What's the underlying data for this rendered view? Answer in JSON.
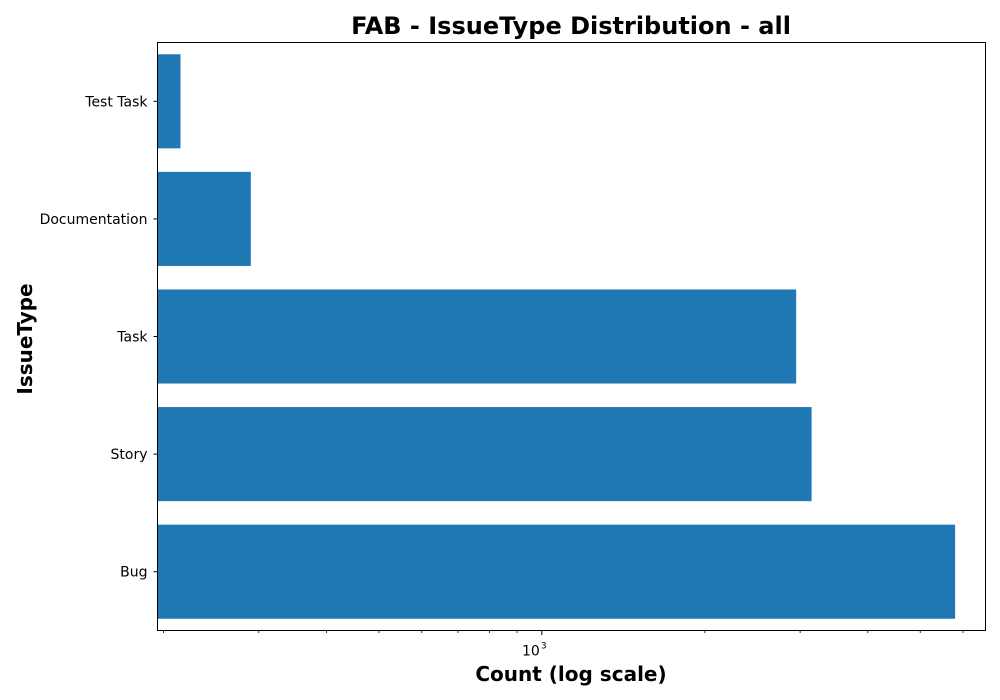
{
  "chart_data": {
    "type": "bar",
    "orientation": "horizontal",
    "title": "FAB - IssueType Distribution - all",
    "xlabel": "Count (log scale)",
    "ylabel": "IssueType",
    "x_scale": "log",
    "xlim": [
      195,
      6600
    ],
    "categories": [
      "Bug",
      "Story",
      "Task",
      "Documentation",
      "Test Task"
    ],
    "values": [
      5800,
      3150,
      2950,
      290,
      215
    ],
    "x_major_ticks": [
      {
        "value": 1000,
        "base": "10",
        "exponent": "3"
      }
    ],
    "x_minor_ticks": [
      200,
      300,
      400,
      500,
      600,
      700,
      800,
      900,
      2000,
      3000,
      4000,
      5000,
      6000
    ],
    "bar_color": "#1f77b4",
    "grid": false,
    "legend": "none"
  }
}
